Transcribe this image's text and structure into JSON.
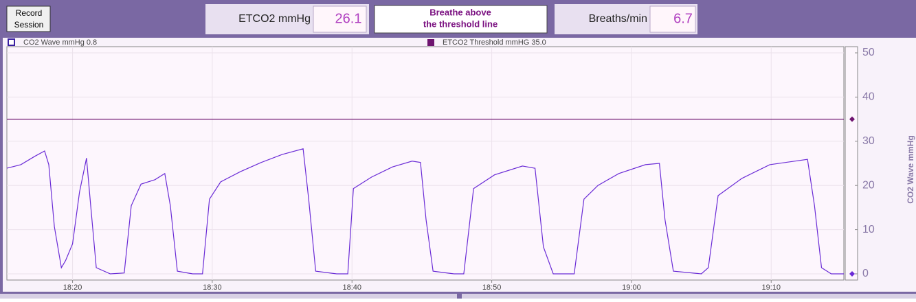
{
  "header": {
    "button": [
      "Record",
      "Session"
    ],
    "etco2_label": "ETCO2 mmHg",
    "etco2_value": 26.1,
    "message": [
      "Breathe above",
      "the threshold line"
    ],
    "breaths_label": "Breaths/min",
    "breaths_value": 6.7
  },
  "chart_data": {
    "type": "line",
    "x": [
      1095.3,
      1096.3,
      1097.3,
      1098.0,
      1098.3,
      1098.7,
      1099.2,
      1099.5,
      1100.0,
      1100.5,
      1101.0,
      1101.3,
      1101.7,
      1102.7,
      1103.7,
      1104.2,
      1104.9,
      1105.9,
      1106.6,
      1107.0,
      1107.5,
      1108.6,
      1109.3,
      1109.8,
      1110.6,
      1112.0,
      1113.5,
      1115.0,
      1116.5,
      1116.9,
      1117.4,
      1118.9,
      1119.7,
      1120.1,
      1121.4,
      1122.9,
      1124.3,
      1124.9,
      1125.3,
      1125.8,
      1127.3,
      1128.0,
      1128.7,
      1130.2,
      1132.2,
      1133.1,
      1133.7,
      1134.4,
      1135.9,
      1136.6,
      1137.6,
      1139.1,
      1141.0,
      1142.0,
      1142.4,
      1143.0,
      1145.0,
      1145.5,
      1146.2,
      1147.9,
      1149.9,
      1152.6,
      1153.1,
      1153.6,
      1154.3,
      1155.2
    ],
    "series": [
      {
        "name": "CO2 Wave mmHg  0.8",
        "color": "#6a2bd6",
        "values": [
          23.9,
          24.7,
          26.6,
          27.8,
          24.7,
          10.7,
          1.4,
          3,
          6.8,
          18.5,
          26.2,
          15.4,
          1.4,
          0,
          0.2,
          15.4,
          20.3,
          21.3,
          22.7,
          15.4,
          0.6,
          0,
          0,
          16.9,
          20.8,
          23.1,
          25.2,
          27,
          28.3,
          16.9,
          0.6,
          0,
          0,
          19.3,
          21.9,
          24.2,
          25.5,
          25.2,
          12.3,
          0.6,
          0,
          0,
          19.3,
          22.4,
          24.4,
          23.9,
          6.1,
          0,
          0,
          16.9,
          20,
          22.7,
          24.7,
          25,
          12.3,
          0.6,
          0,
          1.4,
          17.7,
          21.6,
          24.7,
          25.9,
          15.4,
          1.4,
          0,
          0
        ]
      }
    ],
    "threshold": {
      "name": "ETCO2 Threshold mmHG 35.0",
      "value": 35,
      "color": "#6e1470"
    },
    "y_label": "CO2 Wave mmHg",
    "ylim": [
      -1.4,
      51.4
    ],
    "yticks": [
      0,
      10,
      20,
      30,
      40,
      50
    ],
    "xlim": [
      1095.3,
      1155.2
    ],
    "xticks": [
      {
        "value": 1100,
        "label": "18:20"
      },
      {
        "value": 1110,
        "label": "18:30"
      },
      {
        "value": 1120,
        "label": "18:40"
      },
      {
        "value": 1130,
        "label": "18:50"
      },
      {
        "value": 1140,
        "label": "19:00"
      },
      {
        "value": 1150,
        "label": "19:10"
      }
    ],
    "grid": true
  }
}
